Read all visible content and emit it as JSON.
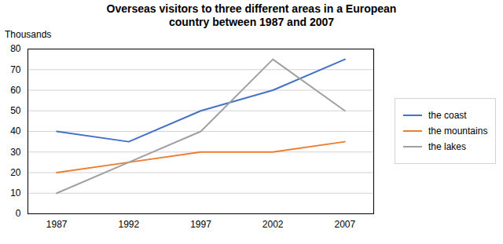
{
  "chart_data": {
    "type": "line",
    "title": "Overseas visitors to three different areas in a European\ncountry between 1987 and 2007",
    "y_label": "Thousands",
    "x": [
      1987,
      1992,
      1997,
      2002,
      2007
    ],
    "series": [
      {
        "name": "the coast",
        "color": "#4472C4",
        "values": [
          40,
          35,
          50,
          60,
          75
        ]
      },
      {
        "name": "the mountains",
        "color": "#ED7D31",
        "values": [
          20,
          25,
          30,
          30,
          35
        ]
      },
      {
        "name": "the lakes",
        "color": "#A0A0A0",
        "values": [
          10,
          25,
          40,
          75,
          50
        ]
      }
    ],
    "xlim": [
      1985,
      2009
    ],
    "xticks": [
      1987,
      1992,
      1997,
      2002,
      2007
    ],
    "ylim": [
      0,
      80
    ],
    "yticks": [
      0,
      10,
      20,
      30,
      40,
      50,
      60,
      70,
      80
    ],
    "grid": "y",
    "legend": "right"
  }
}
